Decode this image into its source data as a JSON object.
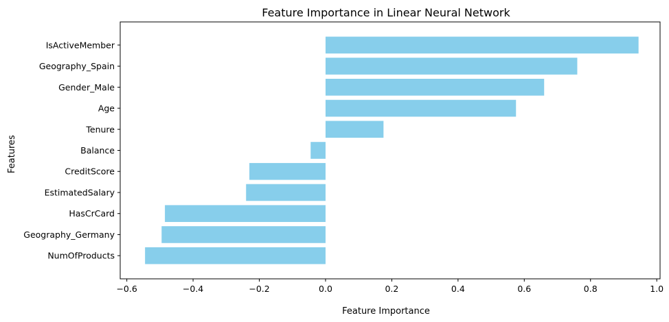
{
  "chart_data": {
    "type": "bar",
    "orientation": "horizontal",
    "title": "Feature Importance in Linear Neural Network",
    "xlabel": "Feature Importance",
    "ylabel": "Features",
    "xlim": [
      -0.62,
      1.01
    ],
    "xticks": [
      -0.6,
      -0.4,
      -0.2,
      0.0,
      0.2,
      0.4,
      0.6,
      0.8,
      1.0
    ],
    "xtick_labels": [
      "−0.6",
      "−0.4",
      "−0.2",
      "0.0",
      "0.2",
      "0.4",
      "0.6",
      "0.8",
      "1.0"
    ],
    "grid": false,
    "bar_color": "#87CEEB",
    "categories": [
      "IsActiveMember",
      "Geography_Spain",
      "Gender_Male",
      "Age",
      "Tenure",
      "Balance",
      "CreditScore",
      "EstimatedSalary",
      "HasCrCard",
      "Geography_Germany",
      "NumOfProducts"
    ],
    "values": [
      0.945,
      0.76,
      0.66,
      0.575,
      0.175,
      -0.045,
      -0.23,
      -0.24,
      -0.485,
      -0.495,
      -0.545
    ]
  }
}
